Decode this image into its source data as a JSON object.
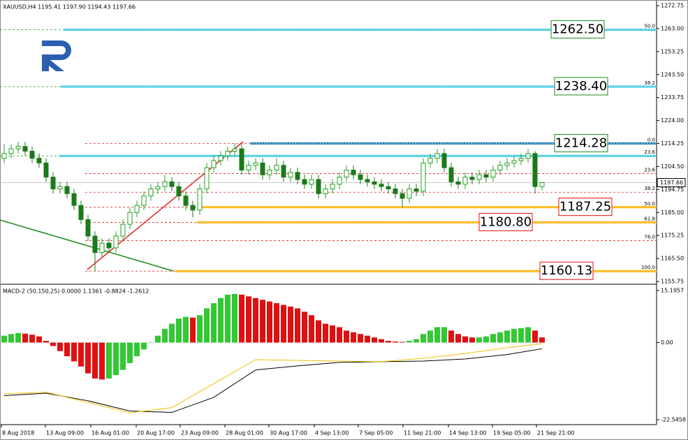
{
  "chart_data": {
    "type": "candlestick",
    "header": "XAUUSD,H4  1195.41 1197.90 1194.43 1197.66",
    "ylim": [
      1155.75,
      1272.75
    ],
    "yticks": [
      1272.75,
      {
        "value": 1263,
        "label": "1263.00"
      },
      1253.25,
      {
        "value": 1243.5,
        "label": "1243.50"
      },
      1233.75,
      {
        "value": 1224,
        "label": "1224.00"
      },
      1214.25,
      {
        "value": 1204.5,
        "label": "1204.50"
      },
      1194.75,
      {
        "value": 1185,
        "label": "1185.00"
      },
      1175.25,
      {
        "value": 1165.5,
        "label": "1165.50"
      },
      1155.75
    ],
    "current_price": {
      "value": 1197.66,
      "label": "1197.66"
    },
    "x_labels": [
      "8 Aug 2018",
      "13 Aug 09:00",
      "16 Aug 01:00",
      "20 Aug 17:00",
      "23 Aug 09:00",
      "28 Aug 01:00",
      "30 Aug 17:00",
      "4 Sep 13:00",
      "7 Sep 05:00",
      "11 Sep 21:00",
      "14 Sep 13:00",
      "19 Sep 05:00",
      "21 Sep 21:00"
    ],
    "up_color": "#22a022",
    "down_color": "#1a7a1a",
    "candles": [
      [
        1208,
        1214,
        1206,
        1210
      ],
      [
        1210,
        1214,
        1208,
        1212
      ],
      [
        1212,
        1215,
        1210,
        1213
      ],
      [
        1213,
        1215,
        1209,
        1211
      ],
      [
        1211,
        1213,
        1206,
        1208
      ],
      [
        1208,
        1210,
        1204,
        1206
      ],
      [
        1206,
        1208,
        1198,
        1200
      ],
      [
        1200,
        1202,
        1193,
        1195
      ],
      [
        1195,
        1198,
        1193,
        1196
      ],
      [
        1196,
        1198,
        1191,
        1193
      ],
      [
        1193,
        1195,
        1186,
        1188
      ],
      [
        1188,
        1190,
        1180,
        1182
      ],
      [
        1182,
        1184,
        1173,
        1175
      ],
      [
        1175,
        1177,
        1160.13,
        1168
      ],
      [
        1168,
        1174,
        1166,
        1172
      ],
      [
        1172,
        1174,
        1168,
        1170
      ],
      [
        1170,
        1177,
        1168,
        1175
      ],
      [
        1175,
        1182,
        1173,
        1180
      ],
      [
        1180,
        1187,
        1178,
        1185
      ],
      [
        1185,
        1190,
        1183,
        1188
      ],
      [
        1188,
        1194,
        1186,
        1192
      ],
      [
        1192,
        1197,
        1190,
        1195
      ],
      [
        1195,
        1198,
        1193,
        1196
      ],
      [
        1196,
        1201,
        1194,
        1198
      ],
      [
        1198,
        1200,
        1194,
        1196
      ],
      [
        1196,
        1198,
        1190,
        1192
      ],
      [
        1192,
        1194,
        1186,
        1188
      ],
      [
        1188,
        1190,
        1183,
        1186
      ],
      [
        1186,
        1197,
        1184,
        1195
      ],
      [
        1195,
        1206,
        1193,
        1204
      ],
      [
        1204,
        1209,
        1202,
        1207
      ],
      [
        1207,
        1211,
        1205,
        1209
      ],
      [
        1209,
        1213,
        1207,
        1211
      ],
      [
        1211,
        1214.28,
        1209,
        1212
      ],
      [
        1212,
        1214,
        1201,
        1203
      ],
      [
        1203,
        1207,
        1201,
        1205
      ],
      [
        1205,
        1208,
        1203,
        1206
      ],
      [
        1206,
        1208,
        1199,
        1201
      ],
      [
        1201,
        1205,
        1199,
        1203
      ],
      [
        1203,
        1208,
        1201,
        1205
      ],
      [
        1205,
        1207,
        1198,
        1200
      ],
      [
        1200,
        1204,
        1198,
        1202
      ],
      [
        1202,
        1204,
        1197,
        1199
      ],
      [
        1199,
        1201,
        1195,
        1197
      ],
      [
        1197,
        1201,
        1195,
        1199
      ],
      [
        1199,
        1201,
        1191,
        1193
      ],
      [
        1193,
        1197,
        1191,
        1195
      ],
      [
        1195,
        1199,
        1193,
        1197
      ],
      [
        1197,
        1202,
        1195,
        1200
      ],
      [
        1200,
        1205,
        1198,
        1203
      ],
      [
        1203,
        1205,
        1199,
        1201
      ],
      [
        1201,
        1203,
        1197,
        1199
      ],
      [
        1199,
        1201,
        1196,
        1198
      ],
      [
        1198,
        1200,
        1195,
        1197
      ],
      [
        1197,
        1199,
        1194,
        1196
      ],
      [
        1196,
        1198,
        1193,
        1195
      ],
      [
        1195,
        1197,
        1191,
        1193
      ],
      [
        1193,
        1195,
        1187.25,
        1191
      ],
      [
        1191,
        1197,
        1189,
        1195
      ],
      [
        1195,
        1197,
        1192,
        1194
      ],
      [
        1194,
        1208,
        1192,
        1206
      ],
      [
        1206,
        1210,
        1204,
        1208
      ],
      [
        1208,
        1212,
        1206,
        1210
      ],
      [
        1210,
        1212,
        1202,
        1204
      ],
      [
        1204,
        1206,
        1196,
        1198
      ],
      [
        1198,
        1200,
        1195,
        1197
      ],
      [
        1197,
        1202,
        1195,
        1200
      ],
      [
        1200,
        1202,
        1197,
        1199
      ],
      [
        1199,
        1203,
        1197,
        1201
      ],
      [
        1201,
        1203,
        1198,
        1200
      ],
      [
        1200,
        1205,
        1198,
        1203
      ],
      [
        1203,
        1207,
        1201,
        1205
      ],
      [
        1205,
        1208,
        1203,
        1206
      ],
      [
        1206,
        1209,
        1204,
        1207
      ],
      [
        1207,
        1210,
        1205,
        1208
      ],
      [
        1208,
        1212,
        1206,
        1210
      ],
      [
        1210,
        1211,
        1193,
        1196
      ],
      [
        1196,
        1198,
        1194.43,
        1197.66
      ]
    ],
    "levels": [
      {
        "value": 1262.5,
        "label": "1262.50",
        "color": "#3cc8e6",
        "label_color": "#1a8a1a"
      },
      {
        "value": 1238.4,
        "label": "1238.40",
        "color": "#3cc8e6",
        "label_color": "#1a8a1a"
      },
      {
        "value": 1214.28,
        "label": "1214.28",
        "color": "#1e78b4",
        "label_color": "#1a8a1a"
      },
      {
        "value": 1209,
        "color": "#3cc8e6"
      },
      {
        "value": 1187.25,
        "label": "1187.25",
        "color": "#ffb000",
        "label_color": "#e01010"
      },
      {
        "value": 1180.8,
        "label": "1180.80",
        "color": "#ffb000",
        "label_color": "#e01010"
      },
      {
        "value": 1160.13,
        "label": "1160.13",
        "color": "#ffb000",
        "label_color": "#e01010"
      }
    ],
    "fib_up": {
      "color": "#1a9a1a",
      "levels": [
        {
          "label": "50.0",
          "value": 1262.5
        },
        {
          "label": "38.2",
          "value": 1238.4
        },
        {
          "label": "23.6",
          "value": 1209
        }
      ]
    },
    "fib_down": {
      "color": "#e02020",
      "levels": [
        {
          "label": "0.0",
          "value": 1214.28
        },
        {
          "label": "23.6",
          "value": 1201.5
        },
        {
          "label": "38.2",
          "value": 1193.6
        },
        {
          "label": "50.0",
          "value": 1187.2
        },
        {
          "label": "61.8",
          "value": 1180.8
        },
        {
          "label": "76.0",
          "value": 1173.1
        },
        {
          "label": "100.0",
          "value": 1160.13
        }
      ]
    },
    "macd": {
      "title": "MACD-2 (50,150,25) 0.0000 1.1361 -0.8824 -1.2612",
      "ylim": [
        -22.5458,
        15.1957
      ],
      "yticks": [
        15.1957,
        {
          "value": 0,
          "label": "0.00"
        },
        -22.5458
      ],
      "up_color": "#32c832",
      "down_color": "#e01010",
      "histogram": [
        2,
        2.5,
        2.8,
        2.6,
        2.3,
        1.8,
        0.5,
        -1,
        -2.5,
        -4,
        -5.5,
        -7,
        -9,
        -10.5,
        -10.8,
        -10.5,
        -9.5,
        -8,
        -6,
        -4,
        -2,
        0,
        2,
        4,
        5.5,
        7,
        7.5,
        7.3,
        8,
        10,
        11.5,
        13,
        14,
        14.2,
        14,
        13.5,
        13,
        12.5,
        12,
        11.5,
        11,
        10.5,
        10,
        9,
        8,
        6.5,
        5.5,
        5,
        4.5,
        3.5,
        3,
        2.5,
        2,
        1.5,
        1,
        0.5,
        0.3,
        0.2,
        0.5,
        1,
        2.5,
        3.5,
        4.5,
        4.5,
        3.5,
        2.5,
        1.8,
        1.5,
        1.5,
        1.8,
        2.5,
        3,
        3.5,
        4,
        4.2,
        4.5,
        3.5,
        1.5
      ],
      "x": [
        0,
        6,
        12,
        18,
        24,
        30,
        36,
        42,
        48,
        54,
        60,
        66,
        72,
        77
      ],
      "series": [
        {
          "color": "#000000",
          "values": [
            -15.5,
            -14.8,
            -17,
            -20,
            -20.4,
            -16,
            -8,
            -6.8,
            -5.8,
            -5.6,
            -5.4,
            -4.8,
            -3.5,
            -1.8
          ]
        },
        {
          "color": "#f0c000",
          "values": [
            -15,
            -14.5,
            -17.5,
            -20.5,
            -19,
            -12,
            -5,
            -5.2,
            -5.4,
            -5.6,
            -4.6,
            -3.2,
            -1.5,
            -0.3
          ]
        }
      ]
    }
  }
}
